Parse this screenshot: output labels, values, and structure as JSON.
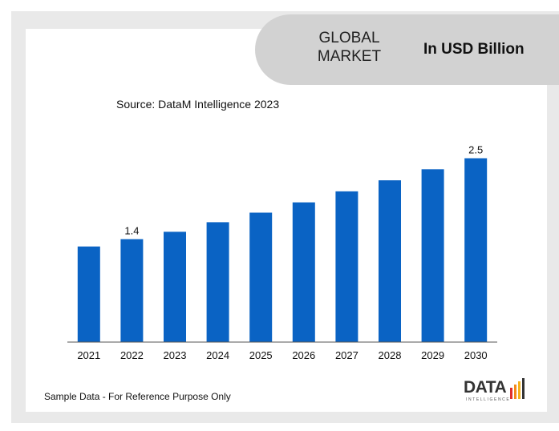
{
  "header": {
    "market_label": "GLOBAL\nMARKET",
    "unit_label": "In USD Billion"
  },
  "source_label": "Source: DataM Intelligence 2023",
  "footer_note": "Sample Data - For Reference Purpose Only",
  "logo": {
    "text": "DATA",
    "subtext": "INTELLIGENCE"
  },
  "colors": {
    "bar": "#0a63c4",
    "axis": "#555555",
    "banner": "#d2d2d2",
    "frame": "#e9e9e9",
    "logo_bars": [
      "#e0302c",
      "#f28a1c",
      "#f5b21c",
      "#333333"
    ]
  },
  "chart_data": {
    "type": "bar",
    "categories": [
      "2021",
      "2022",
      "2023",
      "2024",
      "2025",
      "2026",
      "2027",
      "2028",
      "2029",
      "2030"
    ],
    "values": [
      1.3,
      1.4,
      1.5,
      1.63,
      1.76,
      1.9,
      2.05,
      2.2,
      2.35,
      2.5
    ],
    "data_labels": [
      {
        "index": 1,
        "text": "1.4"
      },
      {
        "index": 9,
        "text": "2.5"
      }
    ],
    "ylim": [
      0,
      2.8
    ],
    "grid": false,
    "legend": "none",
    "title": "",
    "xlabel": "",
    "ylabel": ""
  }
}
